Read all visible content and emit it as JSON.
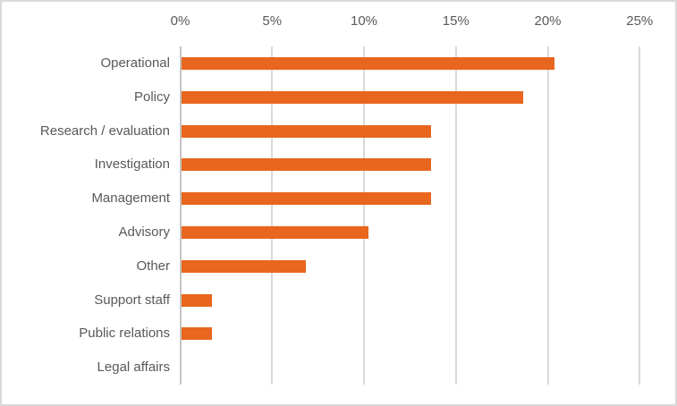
{
  "chart_data": {
    "type": "bar",
    "orientation": "horizontal",
    "title": "",
    "xlabel": "",
    "ylabel": "",
    "categories": [
      "Operational",
      "Policy",
      "Research / evaluation",
      "Investigation",
      "Management",
      "Advisory",
      "Other",
      "Support staff",
      "Public relations",
      "Legal affairs"
    ],
    "values": [
      20.3,
      18.6,
      13.6,
      13.6,
      13.6,
      10.2,
      6.8,
      1.7,
      1.7,
      0
    ],
    "xlim": [
      0,
      25
    ],
    "x_ticks": [
      0,
      5,
      10,
      15,
      20,
      25
    ],
    "x_tick_labels": [
      "0%",
      "5%",
      "10%",
      "15%",
      "20%",
      "25%"
    ],
    "axis_position": "top",
    "grid": true,
    "legend": false,
    "colors": {
      "bar": "#E8661E",
      "gridline": "#D9D9D9",
      "axis_line": "#C4C4C4",
      "text": "#595959",
      "frame_border": "#D9D9D9",
      "background": "#FFFFFF"
    }
  }
}
